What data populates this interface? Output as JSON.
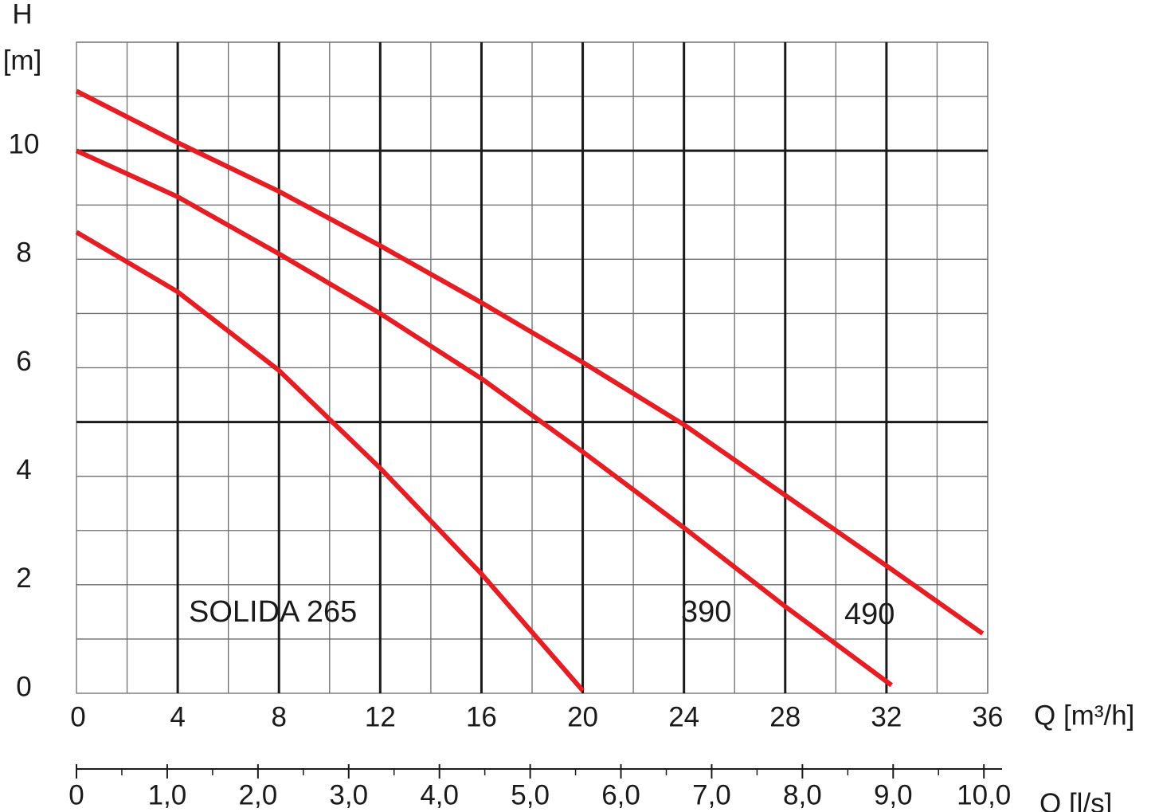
{
  "chart_data": {
    "type": "line",
    "y_label": "H",
    "y_unit": "[m]",
    "x_label": "Q [m³/h]",
    "x2_label": "Q [l/s]",
    "xlim": [
      0,
      36
    ],
    "xticks": [
      0,
      4,
      8,
      12,
      16,
      20,
      24,
      28,
      32,
      36
    ],
    "xgrid": [
      2,
      4,
      6,
      8,
      10,
      12,
      14,
      16,
      18,
      20,
      22,
      24,
      26,
      28,
      30,
      32,
      34,
      36
    ],
    "xgrid_major": [
      4,
      8,
      12,
      16,
      20,
      24,
      28,
      32
    ],
    "ylim": [
      0,
      12
    ],
    "yticks": [
      0,
      2,
      4,
      6,
      8,
      10
    ],
    "ygrid": [
      1,
      2,
      3,
      4,
      5,
      6,
      7,
      8,
      9,
      10,
      11,
      12
    ],
    "ygrid_major": [
      5,
      10
    ],
    "x2lim": [
      0,
      10.2
    ],
    "x2ticks": [
      0,
      {
        "value": 1,
        "label": "1,0"
      },
      {
        "value": 2,
        "label": "2,0"
      },
      {
        "value": 3,
        "label": "3,0"
      },
      {
        "value": 4,
        "label": "4,0"
      },
      {
        "value": 5,
        "label": "5,0"
      },
      {
        "value": 6,
        "label": "6,0"
      },
      {
        "value": 7,
        "label": "7,0"
      },
      {
        "value": 8,
        "label": "8,0"
      },
      {
        "value": 9,
        "label": "9,0"
      },
      {
        "value": 10,
        "label": "10,0"
      }
    ],
    "x2minor": [
      0.5,
      1.5,
      2.5,
      3.5,
      4.5,
      5.5,
      6.5,
      7.5,
      8.5,
      9.5
    ],
    "series": [
      {
        "name": "SOLIDA 265",
        "color": "#e31e24",
        "x": [
          0,
          4,
          8,
          12,
          16,
          20
        ],
        "values": [
          8.5,
          7.4,
          5.95,
          4.15,
          2.2,
          0.05
        ]
      },
      {
        "name": "390",
        "color": "#e31e24",
        "x": [
          0,
          4,
          8,
          12,
          16,
          20,
          24,
          28,
          32.2
        ],
        "values": [
          10,
          9.15,
          8.1,
          7.0,
          5.8,
          4.45,
          3.05,
          1.6,
          0.15
        ]
      },
      {
        "name": "490",
        "color": "#e31e24",
        "x": [
          0,
          4,
          8,
          12,
          16,
          20,
          24,
          28,
          32,
          35.8
        ],
        "values": [
          11.1,
          10.15,
          9.25,
          8.25,
          7.2,
          6.1,
          4.95,
          3.65,
          2.35,
          1.1
        ]
      }
    ]
  }
}
